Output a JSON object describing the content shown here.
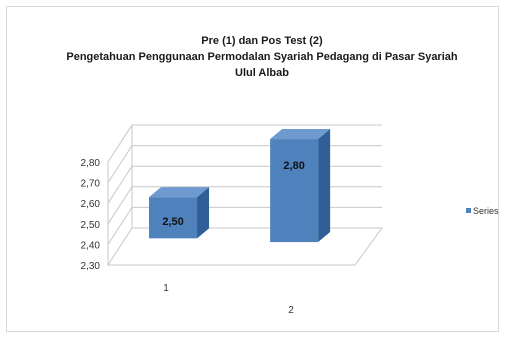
{
  "chart_data": {
    "type": "bar",
    "title_lines": [
      "Pre (1) dan Pos Test (2)",
      "Pengetahuan Penggunaan Permodalan Syariah Pedagang di Pasar Syariah",
      "Ulul Albab"
    ],
    "categories": [
      "1",
      "2"
    ],
    "series": [
      {
        "name": "Series1",
        "values": [
          2.5,
          2.8
        ]
      }
    ],
    "data_labels": [
      "2,50",
      "2,80"
    ],
    "y_ticks": [
      "2,30",
      "2,40",
      "2,50",
      "2,60",
      "2,70",
      "2,80"
    ],
    "ylim": [
      2.3,
      2.8
    ],
    "legend_label": "Series",
    "legend_position": "right",
    "style": "3d",
    "grid": true,
    "bar_color": "#4f81bd"
  }
}
